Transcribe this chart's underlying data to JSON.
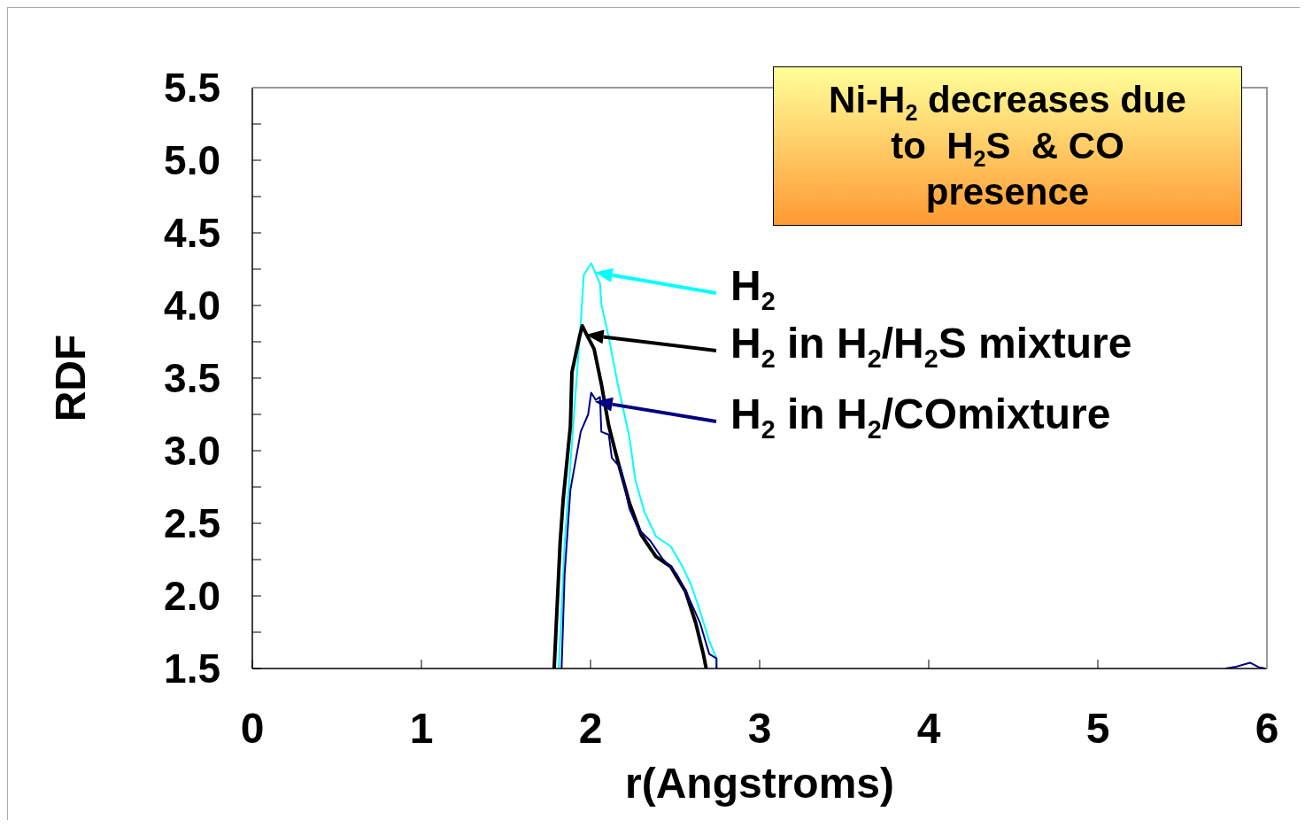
{
  "chart_data": {
    "type": "line",
    "xlabel": "r(Angstroms)",
    "ylabel": "RDF",
    "xlim": [
      0,
      6
    ],
    "xticks": [
      0,
      1,
      2,
      3,
      4,
      5,
      6
    ],
    "ylim": [
      1.5,
      5.5
    ],
    "yticks": [
      1.5,
      {
        "value": 1.75,
        "label": null
      },
      {
        "value": 2,
        "label": "2.0"
      },
      {
        "value": 2.25,
        "label": null
      },
      2.5,
      {
        "value": 2.75,
        "label": null
      },
      {
        "value": 3,
        "label": "3.0"
      },
      {
        "value": 3.25,
        "label": null
      },
      3.5,
      {
        "value": 3.75,
        "label": null
      },
      {
        "value": 4,
        "label": "4.0"
      },
      {
        "value": 4.25,
        "label": null
      },
      4.5,
      {
        "value": 4.75,
        "label": null
      },
      {
        "value": 5,
        "label": "5.0"
      },
      {
        "value": 5.25,
        "label": null
      },
      5.5
    ],
    "legend": "right",
    "marker": "none",
    "line_style": "solid",
    "annotations": [
      "Ni-H$_{2}$ decreases due to  H$_{2}$S  & CO presence"
    ],
    "series": [
      {
        "name": "H$_{2}$",
        "color": "#00ffff",
        "x": [
          1.812,
          1.847,
          1.942,
          1.96,
          2.004,
          2.056,
          2.064,
          2.108,
          2.161,
          2.23,
          2.265,
          2.318,
          2.387,
          2.475,
          2.545,
          2.597,
          2.649,
          2.702,
          2.745,
          2.745
        ],
        "values": [
          1.5,
          2.36,
          3.88,
          4.21,
          4.29,
          4.15,
          4.01,
          3.78,
          3.46,
          3.09,
          2.8,
          2.58,
          2.41,
          2.34,
          2.2,
          2.07,
          1.89,
          1.69,
          1.57,
          1.5
        ]
      },
      {
        "name": "H$_{2}$ in H$_{2}$/H$_{2}$S mixture",
        "color": "#000000",
        "x": [
          1.785,
          1.82,
          1.838,
          1.881,
          1.89,
          1.934,
          1.951,
          1.977,
          2.021,
          2.064,
          2.108,
          2.161,
          2.23,
          2.3,
          2.387,
          2.475,
          2.562,
          2.623,
          2.667,
          2.684
        ],
        "values": [
          1.5,
          2.36,
          2.66,
          3.17,
          3.54,
          3.78,
          3.86,
          3.8,
          3.7,
          3.46,
          3.17,
          2.93,
          2.64,
          2.42,
          2.27,
          2.2,
          2.03,
          1.81,
          1.6,
          1.5
        ]
      },
      {
        "name": "H$_{2}$ in H$_{2}$/COmixture",
        "color": "#000080",
        "x": [
          1.829,
          1.847,
          1.881,
          1.942,
          1.986,
          2.004,
          2.03,
          2.056,
          2.064,
          2.108,
          2.126,
          2.178,
          2.23,
          2.283,
          2.353,
          2.423,
          2.51,
          2.58,
          2.649,
          2.702,
          2.745,
          2.745,
          3.5,
          5.755,
          5.81,
          5.9,
          5.95,
          5.99
        ],
        "values": [
          1.5,
          2.15,
          2.73,
          3.13,
          3.25,
          3.4,
          3.35,
          3.37,
          3.13,
          3.11,
          2.95,
          2.88,
          2.6,
          2.46,
          2.38,
          2.26,
          2.15,
          1.99,
          1.81,
          1.6,
          1.57,
          1.5,
          null,
          1.5,
          1.51,
          1.54,
          1.51,
          1.5
        ]
      }
    ]
  }
}
